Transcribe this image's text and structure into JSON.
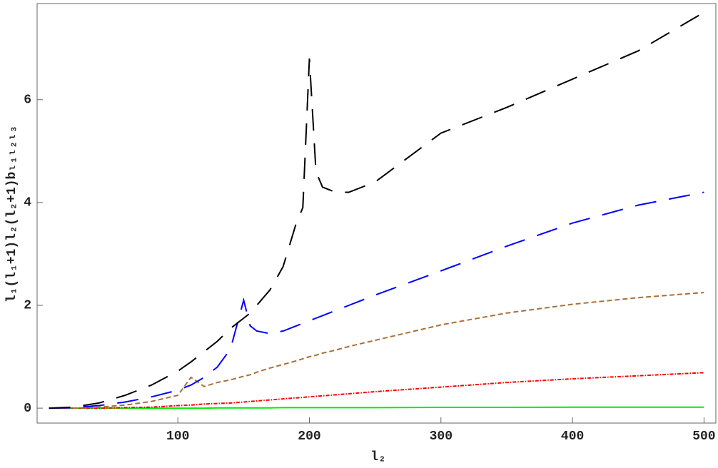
{
  "chart_data": {
    "type": "line",
    "x_label": "l₂",
    "y_label": "l₁(l₁+1)l₂(l₂+1)bₗ₁ₗ₂ₗ₃",
    "x": [
      2,
      20,
      40,
      60,
      80,
      100,
      110,
      120,
      130,
      140,
      150,
      155,
      160,
      170,
      180,
      190,
      195,
      200,
      205,
      210,
      220,
      230,
      250,
      300,
      350,
      400,
      450,
      500
    ],
    "series": [
      {
        "color": "#000000",
        "dash": "long-dash",
        "values": [
          0,
          0.02,
          0.1,
          0.25,
          0.45,
          0.72,
          0.9,
          1.1,
          1.3,
          1.55,
          1.75,
          1.85,
          2.0,
          2.3,
          2.75,
          3.6,
          3.9,
          6.8,
          4.6,
          4.3,
          4.2,
          4.2,
          4.4,
          5.35,
          5.85,
          6.4,
          6.95,
          7.7
        ]
      },
      {
        "color": "#0000ff",
        "dash": "long-dash",
        "values": [
          0,
          0.01,
          0.05,
          0.12,
          0.22,
          0.35,
          0.45,
          0.6,
          0.8,
          1.15,
          2.1,
          1.6,
          1.5,
          1.45,
          1.5,
          1.6,
          1.65,
          1.7,
          1.75,
          1.8,
          1.9,
          2.0,
          2.2,
          2.67,
          3.15,
          3.6,
          3.95,
          4.2
        ]
      },
      {
        "color": "#a8703a",
        "dash": "dashed",
        "values": [
          0,
          0,
          0.02,
          0.06,
          0.13,
          0.25,
          0.6,
          0.42,
          0.5,
          0.55,
          0.62,
          0.65,
          0.7,
          0.78,
          0.85,
          0.92,
          0.96,
          1.0,
          1.03,
          1.07,
          1.13,
          1.2,
          1.32,
          1.62,
          1.85,
          2.02,
          2.15,
          2.25
        ]
      },
      {
        "color": "#ff0000",
        "dash": "dot-dash",
        "values": [
          0,
          0,
          0,
          0.01,
          0.02,
          0.05,
          0.06,
          0.08,
          0.09,
          0.1,
          0.12,
          0.13,
          0.14,
          0.16,
          0.18,
          0.2,
          0.21,
          0.22,
          0.23,
          0.24,
          0.26,
          0.28,
          0.32,
          0.41,
          0.5,
          0.57,
          0.63,
          0.69
        ]
      },
      {
        "color": "#00ee00",
        "dash": "solid",
        "values": [
          0,
          0,
          0,
          0,
          0,
          0,
          0,
          0,
          0.005,
          0.005,
          0.005,
          0.005,
          0.005,
          0.005,
          0.01,
          0.01,
          0.01,
          0.01,
          0.01,
          0.01,
          0.01,
          0.01,
          0.01,
          0.015,
          0.015,
          0.02,
          0.02,
          0.02
        ]
      }
    ],
    "xlim": [
      -7,
      509
    ],
    "ylim": [
      -0.29,
      7.87
    ],
    "xticks": [
      100,
      200,
      300,
      400,
      500
    ],
    "yticks": [
      0,
      2,
      4,
      6
    ]
  }
}
